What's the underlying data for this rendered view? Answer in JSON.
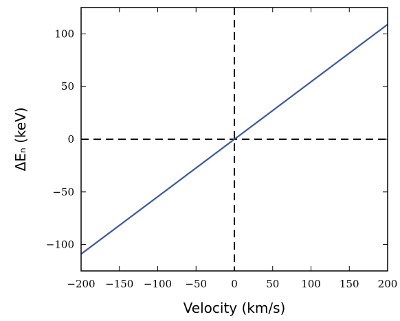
{
  "chart_data": {
    "type": "line",
    "title": "",
    "xlabel": "Velocity (km/s)",
    "ylabel": "ΔEₙ (keV)",
    "xlim": [
      -200,
      200
    ],
    "ylim": [
      -125,
      125
    ],
    "xticks": [
      -200,
      -150,
      -100,
      -50,
      0,
      50,
      100,
      150,
      200
    ],
    "xtick_labels": [
      "−200",
      "−150",
      "−100",
      "−50",
      "0",
      "50",
      "100",
      "150",
      "200"
    ],
    "yticks": [
      -100,
      -50,
      0,
      50,
      100
    ],
    "ytick_labels": [
      "−100",
      "−50",
      "0",
      "50",
      "100"
    ],
    "grid": false,
    "legend": "none",
    "series": [
      {
        "x": [
          -200,
          200
        ],
        "y": [
          -109,
          109
        ],
        "color": "#3a55a4"
      }
    ],
    "reference_lines": [
      {
        "orientation": "horizontal",
        "value": 0,
        "style": "dashed",
        "color": "#000000"
      },
      {
        "orientation": "vertical",
        "value": 0,
        "style": "dashed",
        "color": "#000000"
      }
    ]
  }
}
